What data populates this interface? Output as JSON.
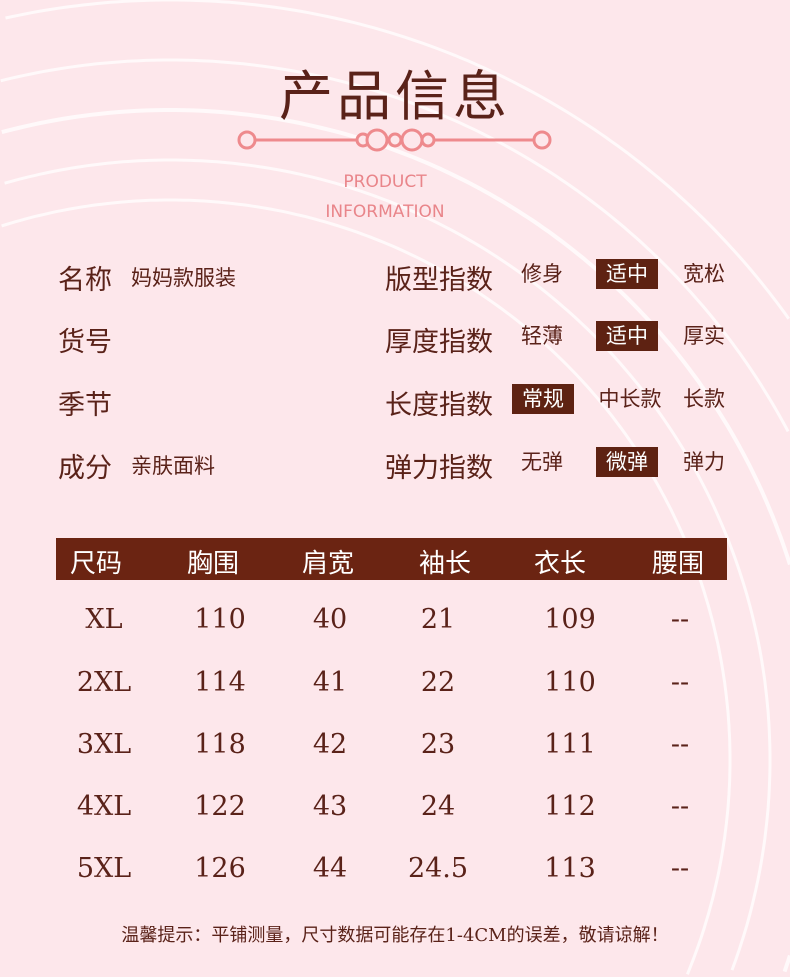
{
  "title": "产品信息",
  "subtitle": [
    "PRODUCT",
    "INFORMATION"
  ],
  "colors": {
    "background": "#fde7eb",
    "text": "#5a2219",
    "accent": "#ee8a8d",
    "highlight": "#5e2212"
  },
  "info_left": [
    {
      "label": "名称",
      "value": "妈妈款服装"
    },
    {
      "label": "货号",
      "value": ""
    },
    {
      "label": "季节",
      "value": ""
    },
    {
      "label": "成分",
      "value": "亲肤面料"
    }
  ],
  "info_right": [
    {
      "label": "版型指数",
      "options": [
        "修身",
        "适中",
        "宽松"
      ],
      "selected": 1
    },
    {
      "label": "厚度指数",
      "options": [
        "轻薄",
        "适中",
        "厚实"
      ],
      "selected": 1
    },
    {
      "label": "长度指数",
      "options": [
        "常规",
        "中长款",
        "长款"
      ],
      "selected": 0
    },
    {
      "label": "弹力指数",
      "options": [
        "无弹",
        "微弹",
        "弹力"
      ],
      "selected": 1
    }
  ],
  "table": {
    "headers": [
      "尺码",
      "胸围",
      "肩宽",
      "袖长",
      "衣长",
      "腰围"
    ],
    "rows": [
      [
        "XL",
        "110",
        "40",
        "21",
        "109",
        "--"
      ],
      [
        "2XL",
        "114",
        "41",
        "22",
        "110",
        "--"
      ],
      [
        "3XL",
        "118",
        "42",
        "23",
        "111",
        "--"
      ],
      [
        "4XL",
        "122",
        "43",
        "24",
        "112",
        "--"
      ],
      [
        "5XL",
        "126",
        "44",
        "24.5",
        "113",
        "--"
      ]
    ]
  },
  "note": "温馨提示：平铺测量，尺寸数据可能存在1-4CM的误差，敬请谅解！"
}
